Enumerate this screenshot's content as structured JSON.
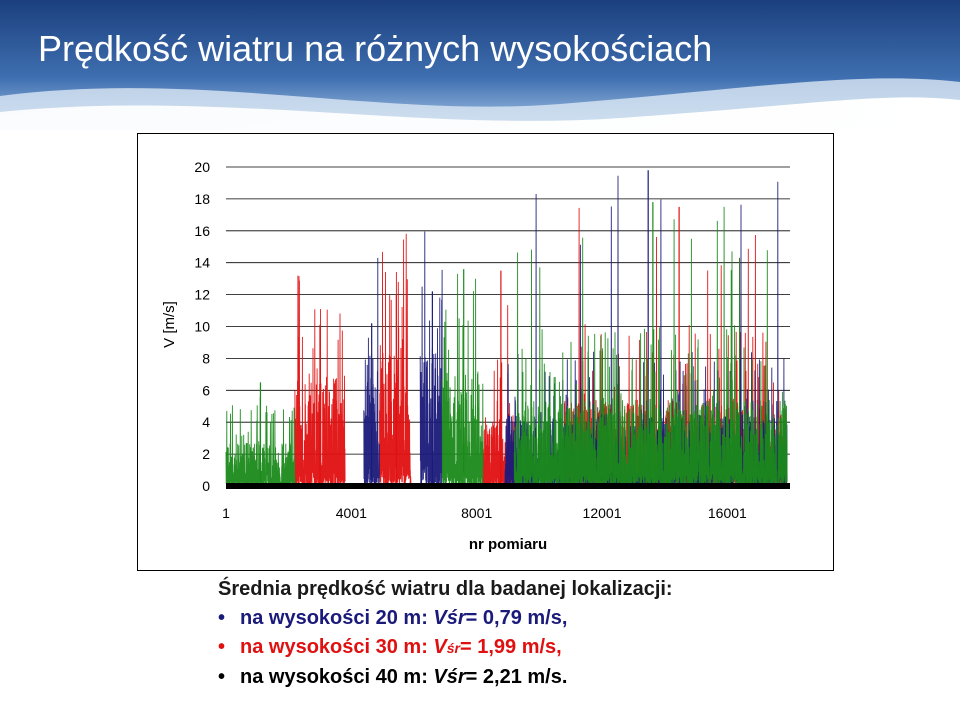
{
  "title": "Prędkość wiatru na różnych wysokościach",
  "colors": {
    "header_top": "#1b3f7e",
    "header_bottom": "#7fa8d6",
    "series_20m": "#1a1a7a",
    "series_30m": "#e01010",
    "series_40m": "#1a8a1a"
  },
  "chart_data": {
    "type": "line",
    "ylabel": "V [m/s]",
    "xlabel": "nr pomiaru",
    "ylim": [
      0,
      20
    ],
    "yticks": [
      "0",
      "2",
      "4",
      "6",
      "8",
      "10",
      "12",
      "14",
      "16",
      "18",
      "20"
    ],
    "xticks": [
      "1",
      "4001",
      "8001",
      "12001",
      "16001"
    ],
    "xlim": [
      1,
      18000
    ],
    "grid": "horizontal",
    "series": [
      {
        "color": "#e01010",
        "segments": [
          {
            "x": [
              2200,
              3800
            ],
            "level": 8,
            "peak": 10.1
          },
          {
            "x": [
              4900,
              5900
            ],
            "level": 9.5,
            "peak": 12.0
          },
          {
            "x": [
              8200,
              9200
            ],
            "level": 5,
            "peak": 13.5
          },
          {
            "x": [
              10800,
              17900
            ],
            "level": 6,
            "peak": 17.5
          }
        ]
      },
      {
        "color": "#1a1a7a",
        "segments": [
          {
            "x": [
              4400,
              4900
            ],
            "level": 9,
            "peak": 10.2
          },
          {
            "x": [
              6200,
              6900
            ],
            "level": 10,
            "peak": 12.2
          },
          {
            "x": [
              8900,
              17900
            ],
            "level": 5,
            "peak": 19.8
          }
        ]
      },
      {
        "color": "#1a8a1a",
        "segments": [
          {
            "x": [
              1,
              2200
            ],
            "level": 3,
            "peak": 6.5
          },
          {
            "x": [
              6900,
              8200
            ],
            "level": 8,
            "peak": 13.6
          },
          {
            "x": [
              9200,
              17900
            ],
            "level": 6,
            "peak": 17.8
          }
        ]
      }
    ]
  },
  "summary": {
    "heading": "Średnia prędkość wiatru dla badanej lokalizacji:",
    "bullet": "•",
    "rows": [
      {
        "prefix": "na wysokości 20 m: ",
        "v": "V",
        "sub": "śr",
        "value": "= 0,79 m/s,",
        "color": "#1a1a7a"
      },
      {
        "prefix": "na wysokości 30 m: ",
        "v": "V",
        "sub": "śr",
        "value": "= 1,99 m/s,",
        "color": "#e01010"
      },
      {
        "prefix": "na wysokości 40 m: ",
        "v": "V",
        "sub": "śr",
        "value": "= 2,21 m/s.",
        "color": "#000000"
      }
    ]
  }
}
